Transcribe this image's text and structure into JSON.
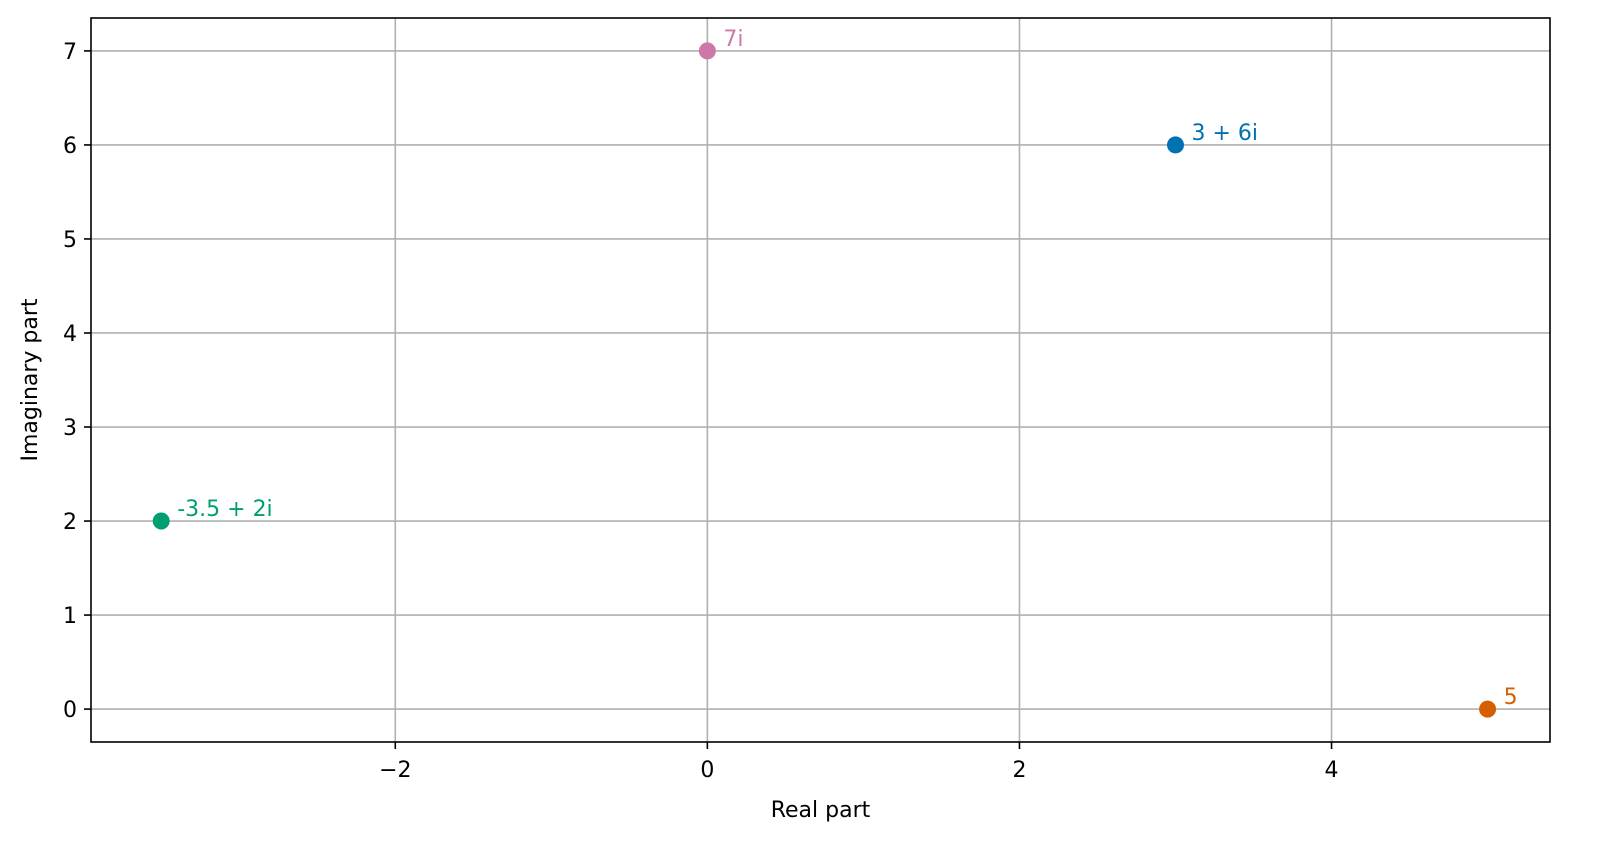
{
  "chart_data": {
    "type": "scatter",
    "title": "",
    "xlabel": "Real part",
    "ylabel": "Imaginary part",
    "xlim": [
      -3.95,
      5.4
    ],
    "ylim": [
      -0.35,
      7.35
    ],
    "grid": true,
    "x_ticks": [
      {
        "value": -2,
        "label": "−2"
      },
      {
        "value": 0,
        "label": "0"
      },
      {
        "value": 2,
        "label": "2"
      },
      {
        "value": 4,
        "label": "4"
      }
    ],
    "y_ticks": [
      {
        "value": 0,
        "label": "0"
      },
      {
        "value": 1,
        "label": "1"
      },
      {
        "value": 2,
        "label": "2"
      },
      {
        "value": 3,
        "label": "3"
      },
      {
        "value": 4,
        "label": "4"
      },
      {
        "value": 5,
        "label": "5"
      },
      {
        "value": 6,
        "label": "6"
      },
      {
        "value": 7,
        "label": "7"
      }
    ],
    "points": [
      {
        "x": 3,
        "y": 6,
        "label": "3 + 6i",
        "color": "#0072b2"
      },
      {
        "x": 5,
        "y": 0,
        "label": "5",
        "color": "#d55e00"
      },
      {
        "x": -3.5,
        "y": 2,
        "label": "-3.5 + 2i",
        "color": "#009e73"
      },
      {
        "x": 0,
        "y": 7,
        "label": "7i",
        "color": "#cc79a7"
      }
    ]
  }
}
